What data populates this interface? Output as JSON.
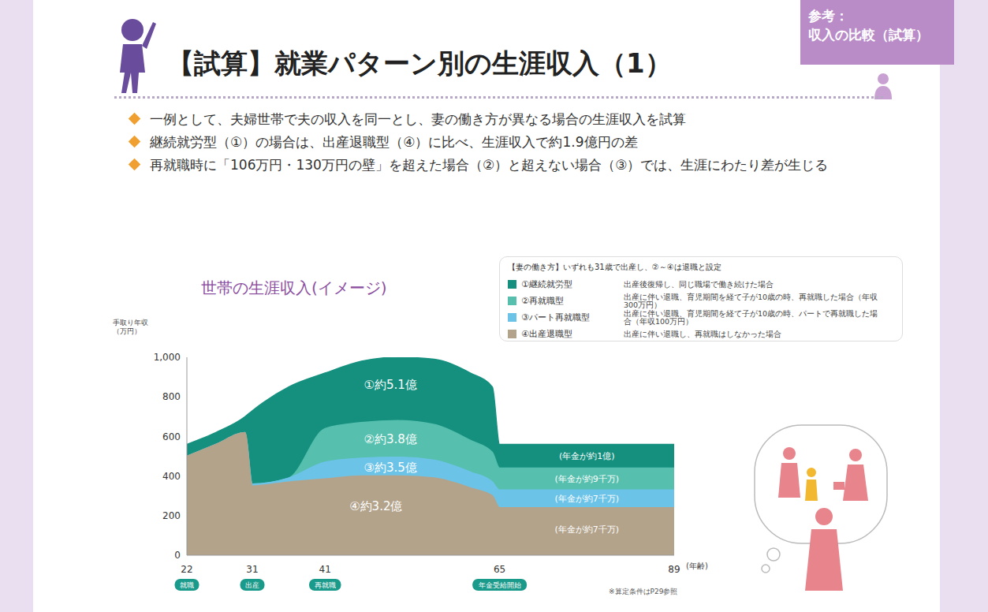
{
  "header": {
    "tag": [
      "参考：",
      "収入の比較（試算）"
    ],
    "title": "【試算】就業パターン別の生涯収入（1）",
    "bullets": [
      "一例として、夫婦世帯で夫の収入を同一とし、妻の働き方が異なる場合の生涯収入を試算",
      "継続就労型（①）の場合は、出産退職型（④）に比べ、生涯収入で約1.9億円の差",
      "再就職時に「106万円・130万円の壁」を超えた場合（②）と超えない場合（③）では、生涯にわたり差が生じる"
    ]
  },
  "chart_data": {
    "type": "area",
    "title": "世帯の生涯収入(イメージ)",
    "y_label": "手取り年収（万円）",
    "x_label": "(年齢)",
    "stacked": false,
    "grid": false,
    "legend": "upper right",
    "legend_title": "【妻の働き方】いずれも31歳で出産し、②～④は退職と設定",
    "x": [
      22,
      26,
      30,
      31,
      36,
      41,
      46,
      51,
      56,
      61,
      64,
      65,
      70,
      75,
      80,
      85,
      89
    ],
    "xlim": [
      22,
      89
    ],
    "xticks": [
      22,
      31,
      41,
      65,
      89
    ],
    "ylim": [
      0,
      1000
    ],
    "yticks": [
      0,
      200,
      400,
      600,
      800,
      {
        "value": 1000,
        "label": "1,000"
      }
    ],
    "series": [
      {
        "name": "①継続就労型",
        "description": "出産後復帰し、同じ職場で働き続けた場合",
        "color": "#15907f",
        "values": [
          560,
          620,
          700,
          730,
          850,
          920,
          980,
          1000,
          990,
          920,
          850,
          560,
          560,
          560,
          560,
          560,
          560
        ]
      },
      {
        "name": "②再就職型",
        "description": "出産に伴い退職、育児期間を経て子が10歳の時、再就職した場合（年収300万円）",
        "color": "#56bfae",
        "values": [
          500,
          560,
          620,
          360,
          390,
          640,
          670,
          680,
          660,
          580,
          520,
          440,
          440,
          440,
          440,
          440,
          440
        ]
      },
      {
        "name": "③パート再就職型",
        "description": "出産に伴い退職、育児期間を経て子が10歳の時、パートで再就職した場合（年収100万円）",
        "color": "#6cc3e8",
        "values": [
          500,
          560,
          620,
          360,
          390,
          470,
          490,
          495,
          480,
          420,
          370,
          330,
          330,
          330,
          330,
          330,
          330
        ]
      },
      {
        "name": "④出産退職型",
        "description": "出産に伴い退職し、再就職はしなかった場合",
        "color": "#b3a38b",
        "values": [
          500,
          560,
          620,
          350,
          370,
          385,
          400,
          400,
          390,
          340,
          300,
          240,
          240,
          240,
          240,
          240,
          240
        ]
      }
    ],
    "total_labels": [
      {
        "text": "①約5.1億",
        "x": 50,
        "y": 860
      },
      {
        "text": "②約3.8億",
        "x": 50,
        "y": 585
      },
      {
        "text": "③約3.5億",
        "x": 50,
        "y": 445
      },
      {
        "text": "④約3.2億",
        "x": 48,
        "y": 250
      }
    ],
    "pension_labels": [
      {
        "text": "(年金が約1億)",
        "x": 77,
        "y": 500
      },
      {
        "text": "(年金が約9千万)",
        "x": 77,
        "y": 385
      },
      {
        "text": "(年金が約7千万)",
        "x": 77,
        "y": 285
      },
      {
        "text": "(年金が約7千万)",
        "x": 77,
        "y": 130
      }
    ],
    "events": [
      {
        "x": 22,
        "label": "就職"
      },
      {
        "x": 31,
        "label": "出産"
      },
      {
        "x": 41,
        "label": "再就職"
      },
      {
        "x": 65,
        "label": "年金受給開始"
      }
    ],
    "note": "※算定条件はP29参照"
  }
}
